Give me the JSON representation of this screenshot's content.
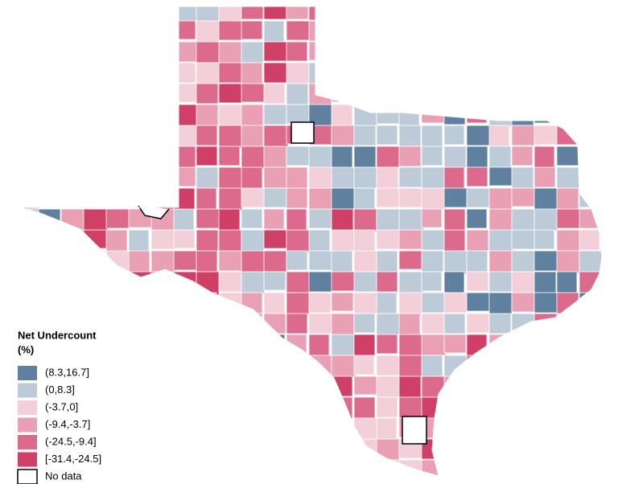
{
  "legend": {
    "title": "Net Undercount",
    "unit": "(%)",
    "items": [
      {
        "label": "(8.3,16.7]",
        "color": "#5f809e"
      },
      {
        "label": "(0,8.3]",
        "color": "#bdcbd9"
      },
      {
        "label": "(-3.7,0]",
        "color": "#f3cfd9"
      },
      {
        "label": "(-9.4,-3.7]",
        "color": "#e9a0b4"
      },
      {
        "label": "(-24.5,-9.4]",
        "color": "#db6a8d"
      },
      {
        "label": "[-31.4,-24.5]",
        "color": "#d03f66"
      },
      {
        "label": "No data",
        "color": "#ffffff"
      }
    ]
  }
}
